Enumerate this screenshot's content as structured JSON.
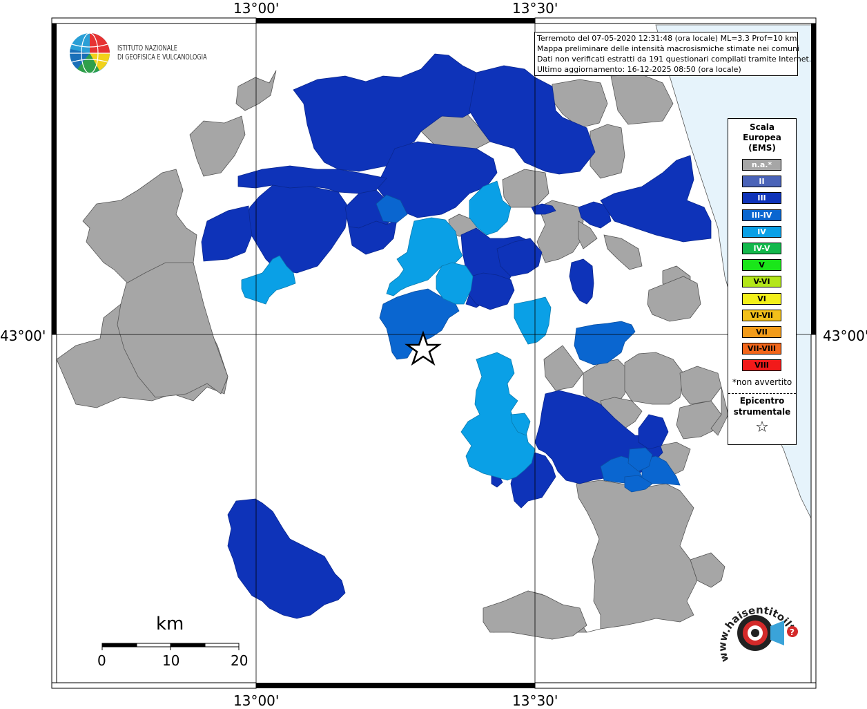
{
  "header": {
    "info_lines": [
      "Terremoto del 07-05-2020 12:31:48 (ora locale) ML=3.3 Prof=10 km",
      "Mappa preliminare delle intensità macrosismiche stimate nei comuni",
      "Dati non verificati estratti da 191 questionari compilati tramite Internet.",
      "Ultimo aggiornamento: 16-12-2025 08:50 (ora locale)"
    ]
  },
  "coordinates": {
    "top": [
      "13°00'",
      "13°30'"
    ],
    "bottom": [
      "13°00'",
      "13°30'"
    ],
    "left": "43°00'",
    "right": "43°00'"
  },
  "logo": {
    "line1": "ISTITUTO NAZIONALE",
    "line2": "DI GEOFISICA E VULCANOLOGIA"
  },
  "legend": {
    "title_lines": [
      "Scala",
      "Europea",
      "(EMS)"
    ],
    "items": [
      {
        "label": "n.a.*",
        "color": "#a6a6a6",
        "text_color": "#ffffff"
      },
      {
        "label": "II",
        "color": "#4a63b8",
        "text_color": "#ffffff"
      },
      {
        "label": "III",
        "color": "#0e33b9",
        "text_color": "#ffffff"
      },
      {
        "label": "III-IV",
        "color": "#0a66d0",
        "text_color": "#ffffff"
      },
      {
        "label": "IV",
        "color": "#0aa0e6",
        "text_color": "#ffffff"
      },
      {
        "label": "IV-V",
        "color": "#13b84c",
        "text_color": "#ffffff"
      },
      {
        "label": "V",
        "color": "#1ae61a",
        "text_color": "#000000"
      },
      {
        "label": "V-VI",
        "color": "#b3e61a",
        "text_color": "#000000"
      },
      {
        "label": "VI",
        "color": "#f2ef1a",
        "text_color": "#000000"
      },
      {
        "label": "VI-VII",
        "color": "#f2c01a",
        "text_color": "#000000"
      },
      {
        "label": "VII",
        "color": "#f29b1a",
        "text_color": "#000000"
      },
      {
        "label": "VII-VIII",
        "color": "#f2661a",
        "text_color": "#000000"
      },
      {
        "label": "VIII",
        "color": "#f21a1a",
        "text_color": "#000000"
      }
    ],
    "note": "*non avvertito",
    "epicenter_lines": [
      "Epicentro",
      "strumentale"
    ],
    "epicenter_symbol": "☆"
  },
  "scale_bar": {
    "unit": "km",
    "ticks": [
      "0",
      "10",
      "20"
    ]
  },
  "watermark": {
    "text": "www.haisentitoilterremoto.it"
  },
  "colors": {
    "na": "#a6a6a6",
    "III": "#0e33b9",
    "III-IV": "#0a66d0",
    "IV": "#0aa0e6",
    "sea": "#e6f3fb",
    "border": "#555555"
  }
}
